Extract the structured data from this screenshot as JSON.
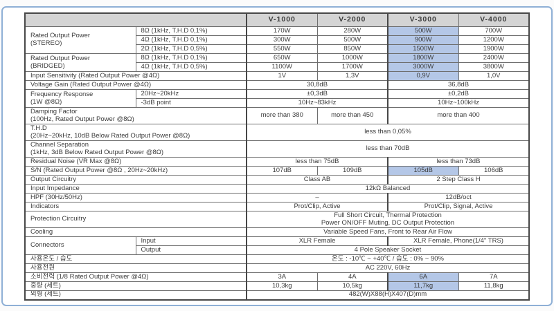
{
  "frame": {
    "border_color": "#8fb0d6"
  },
  "colors": {
    "header_bg": "#d4d4d4",
    "highlight": "#b4c7e7",
    "grid": "#6e6e6e",
    "grid_strong": "#474747",
    "text": "#3c3c3c"
  },
  "table": {
    "models": [
      "V-1000",
      "V-2000",
      "V-3000",
      "V-4000"
    ],
    "header": [
      {
        "t": "",
        "cs": 2,
        "th": true
      },
      {
        "t": "V-1000",
        "th": true,
        "bl": true
      },
      {
        "t": "V-2000",
        "th": true
      },
      {
        "t": "V-3000",
        "th": true,
        "bl": true
      },
      {
        "t": "V-4000",
        "th": true
      }
    ],
    "rows": [
      {
        "cells": [
          {
            "t": "Rated Output Power\n(STEREO)",
            "rs": 3,
            "cls": "lbl"
          },
          {
            "t": "8Ω (1kHz, T.H.D 0,1%)",
            "cls": "lbl"
          },
          {
            "t": "170W",
            "bl": true
          },
          {
            "t": "280W"
          },
          {
            "t": "500W",
            "hl": true,
            "bl": true
          },
          {
            "t": "700W"
          }
        ]
      },
      {
        "cells": [
          {
            "t": "4Ω (1kHz, T.H.D 0,1%)",
            "cls": "lbl"
          },
          {
            "t": "300W",
            "bl": true
          },
          {
            "t": "500W"
          },
          {
            "t": "900W",
            "hl": true,
            "bl": true
          },
          {
            "t": "1200W"
          }
        ]
      },
      {
        "cells": [
          {
            "t": "2Ω (1kHz, T.H.D 0,5%)",
            "cls": "lbl"
          },
          {
            "t": "550W",
            "bl": true
          },
          {
            "t": "850W"
          },
          {
            "t": "1500W",
            "hl": true,
            "bl": true
          },
          {
            "t": "1900W"
          }
        ]
      },
      {
        "cells": [
          {
            "t": "Rated Output Power\n(BRIDGED)",
            "rs": 2,
            "cls": "lbl"
          },
          {
            "t": "8Ω (1kHz, T.H.D 0,1%)",
            "cls": "lbl"
          },
          {
            "t": "650W",
            "bl": true
          },
          {
            "t": "1000W"
          },
          {
            "t": "1800W",
            "hl": true,
            "bl": true
          },
          {
            "t": "2400W"
          }
        ]
      },
      {
        "cells": [
          {
            "t": "4Ω (1kHz, T.H.D 0,5%)",
            "cls": "lbl"
          },
          {
            "t": "1100W",
            "bl": true
          },
          {
            "t": "1700W"
          },
          {
            "t": "3000W",
            "hl": true,
            "bl": true
          },
          {
            "t": "3800W"
          }
        ]
      },
      {
        "cells": [
          {
            "t": "Input Sensitivity (Rated Output Power @4Ω)",
            "cs": 2,
            "cls": "lbl"
          },
          {
            "t": "1V",
            "bl": true
          },
          {
            "t": "1,3V"
          },
          {
            "t": "0,9V",
            "hl": true,
            "bl": true
          },
          {
            "t": "1,0V"
          }
        ]
      },
      {
        "cells": [
          {
            "t": "Voltage Gain (Rated Output Power @4Ω)",
            "cs": 2,
            "cls": "lbl"
          },
          {
            "t": "30,8dB",
            "cs": 2,
            "bl": true
          },
          {
            "t": "36,8dB",
            "cs": 2,
            "bl": true
          }
        ]
      },
      {
        "cells": [
          {
            "t": "Frequency Response\n(1W @8Ω)",
            "rs": 2,
            "cls": "lbl"
          },
          {
            "t": "20Hz~20kHz",
            "cls": "lbl"
          },
          {
            "t": "±0,3dB",
            "cs": 2,
            "bl": true
          },
          {
            "t": "±0,2dB",
            "cs": 2,
            "bl": true
          }
        ]
      },
      {
        "cells": [
          {
            "t": "-3dB point",
            "cls": "lbl"
          },
          {
            "t": "10Hz~83kHz",
            "cs": 2,
            "bl": true
          },
          {
            "t": "10Hz~100kHz",
            "cs": 2,
            "bl": true
          }
        ]
      },
      {
        "dbl": true,
        "cells": [
          {
            "t": "Damping Factor\n(100Hz, Rated Output Power @8Ω)",
            "cs": 2,
            "cls": "lbl"
          },
          {
            "t": "more than 380",
            "bl": true
          },
          {
            "t": "more than 450"
          },
          {
            "t": "more than 400",
            "cs": 2,
            "bl": true
          }
        ]
      },
      {
        "dbl": true,
        "cells": [
          {
            "t": "T.H.D\n(20Hz~20kHz, 10dB Below Rated Output Power @8Ω)",
            "cs": 2,
            "cls": "lbl"
          },
          {
            "t": "less than 0,05%",
            "cs": 4,
            "bl": true
          }
        ]
      },
      {
        "dbl": true,
        "cells": [
          {
            "t": "Channel Separation\n(1kHz, 3dB Below Rated Output Power @8Ω)",
            "cs": 2,
            "cls": "lbl"
          },
          {
            "t": "less than 70dB",
            "cs": 4,
            "bl": true
          }
        ]
      },
      {
        "cells": [
          {
            "t": "Residual Noise (VR Max @8Ω)",
            "cs": 2,
            "cls": "lbl"
          },
          {
            "t": "less than 75dB",
            "cs": 2,
            "bl": true
          },
          {
            "t": "less than 73dB",
            "cs": 2,
            "bl": true
          }
        ]
      },
      {
        "cells": [
          {
            "t": "S/N (Rated Output Power @8Ω , 20Hz~20kHz)",
            "cs": 2,
            "cls": "lbl"
          },
          {
            "t": "107dB",
            "bl": true
          },
          {
            "t": "109dB"
          },
          {
            "t": "105dB",
            "hl": true,
            "bl": true
          },
          {
            "t": "106dB"
          }
        ]
      },
      {
        "cells": [
          {
            "t": "Output Circuitry",
            "cs": 2,
            "cls": "lbl"
          },
          {
            "t": "Class AB",
            "cs": 2,
            "bl": true
          },
          {
            "t": "2 Step Class H",
            "cs": 2,
            "bl": true
          }
        ]
      },
      {
        "cells": [
          {
            "t": "Input Impedance",
            "cs": 2,
            "cls": "lbl"
          },
          {
            "t": "12kΩ  Balanced",
            "cs": 4,
            "bl": true
          }
        ]
      },
      {
        "cells": [
          {
            "t": "HPF (30Hz/50Hz)",
            "cs": 2,
            "cls": "lbl"
          },
          {
            "t": "–",
            "cs": 2,
            "bl": true
          },
          {
            "t": "12dB/oct",
            "cs": 2,
            "bl": true
          }
        ]
      },
      {
        "cells": [
          {
            "t": "Indicators",
            "cs": 2,
            "cls": "lbl"
          },
          {
            "t": "Prot/Clip, Active",
            "cs": 2,
            "bl": true
          },
          {
            "t": "Prot/Clip, Signal, Active",
            "cs": 2,
            "bl": true
          }
        ]
      },
      {
        "dbl": true,
        "cells": [
          {
            "t": "Protection Circuitry",
            "cs": 2,
            "cls": "lbl"
          },
          {
            "t": "Full Short Circuit, Thermal Protection\nPower ON/OFF Muting, DC Output Protection",
            "cs": 4,
            "bl": true
          }
        ]
      },
      {
        "cells": [
          {
            "t": "Cooling",
            "cs": 2,
            "cls": "lbl"
          },
          {
            "t": "Variable Speed Fans, Front to Rear Air Flow",
            "cs": 4,
            "bl": true
          }
        ]
      },
      {
        "cells": [
          {
            "t": "Connectors",
            "rs": 2,
            "cls": "lbl"
          },
          {
            "t": "Input",
            "cls": "lbl"
          },
          {
            "t": "XLR Female",
            "cs": 2,
            "bl": true
          },
          {
            "t": "XLR Female, Phone(1/4\" TRS)",
            "cs": 2,
            "bl": true
          }
        ]
      },
      {
        "cells": [
          {
            "t": "Output",
            "cls": "lbl"
          },
          {
            "t": "4 Pole Speaker Socket",
            "cs": 4,
            "bl": true
          }
        ]
      },
      {
        "cells": [
          {
            "t": "사용온도 / 습도",
            "cs": 2,
            "cls": "lbl"
          },
          {
            "t": "온도 : -10℃ ~ +40℃ / 습도 : 0% ~ 90%",
            "cs": 4,
            "bl": true
          }
        ]
      },
      {
        "cells": [
          {
            "t": "사용전원",
            "cs": 2,
            "cls": "lbl"
          },
          {
            "t": "AC 220V, 60Hz",
            "cs": 4,
            "bl": true
          }
        ]
      },
      {
        "cells": [
          {
            "t": "소비전력 (1/8 Rated Output Power @4Ω)",
            "cs": 2,
            "cls": "lbl"
          },
          {
            "t": "3A",
            "bl": true
          },
          {
            "t": "4A"
          },
          {
            "t": "6A",
            "hl": true,
            "bl": true
          },
          {
            "t": "7A"
          }
        ]
      },
      {
        "cells": [
          {
            "t": "중량 (세트)",
            "cs": 2,
            "cls": "lbl"
          },
          {
            "t": "10,3kg",
            "bl": true
          },
          {
            "t": "10,5kg"
          },
          {
            "t": "11,7kg",
            "hl": true,
            "bl": true
          },
          {
            "t": "11,8kg"
          }
        ]
      },
      {
        "cells": [
          {
            "t": "외형 (세트)",
            "cs": 2,
            "cls": "lbl"
          },
          {
            "t": "482(W)X88(H)X407(D)mm",
            "cs": 4,
            "bl": true
          }
        ]
      }
    ]
  }
}
